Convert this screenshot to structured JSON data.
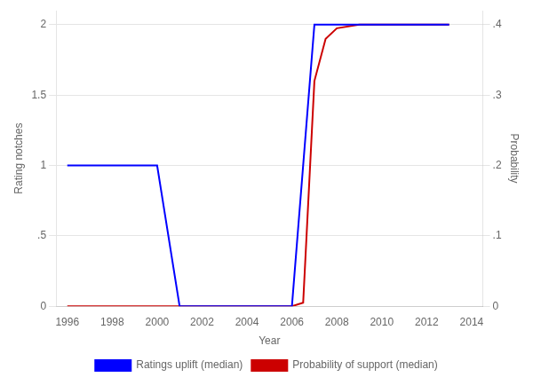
{
  "chart_data": {
    "type": "line",
    "x_label": "Year",
    "y_label": "Rating notches",
    "y2_label": "Probability",
    "xlim": [
      1995.5,
      2014.5
    ],
    "xticks": [
      1996,
      1998,
      2000,
      2002,
      2004,
      2006,
      2008,
      2010,
      2012,
      2014
    ],
    "ylim": [
      0,
      2.1
    ],
    "yticks": [
      0,
      {
        "value": 0.5,
        "label": ".5"
      },
      1,
      1.5,
      2
    ],
    "y2lim": [
      0,
      0.42
    ],
    "y2ticks": [
      0,
      {
        "value": 0.1,
        "label": ".1"
      },
      {
        "value": 0.2,
        "label": ".2"
      },
      {
        "value": 0.3,
        "label": ".3"
      },
      {
        "value": 0.4,
        "label": ".4"
      }
    ],
    "grid": "y",
    "legend": "bottom",
    "series": [
      {
        "name": "Ratings uplift (median)",
        "color": "#0000ff",
        "axis": "y",
        "x": [
          1996,
          2000,
          2001,
          2006,
          2007,
          2013
        ],
        "values": [
          1,
          1,
          0,
          0,
          2,
          2
        ]
      },
      {
        "name": "Probability of support (median)",
        "color": "#cc0000",
        "axis": "y2",
        "x": [
          1996,
          2006,
          2006.5,
          2007,
          2007.5,
          2008,
          2009,
          2013
        ],
        "values": [
          0,
          0,
          0.005,
          0.32,
          0.38,
          0.395,
          0.4,
          0.4
        ]
      }
    ]
  }
}
